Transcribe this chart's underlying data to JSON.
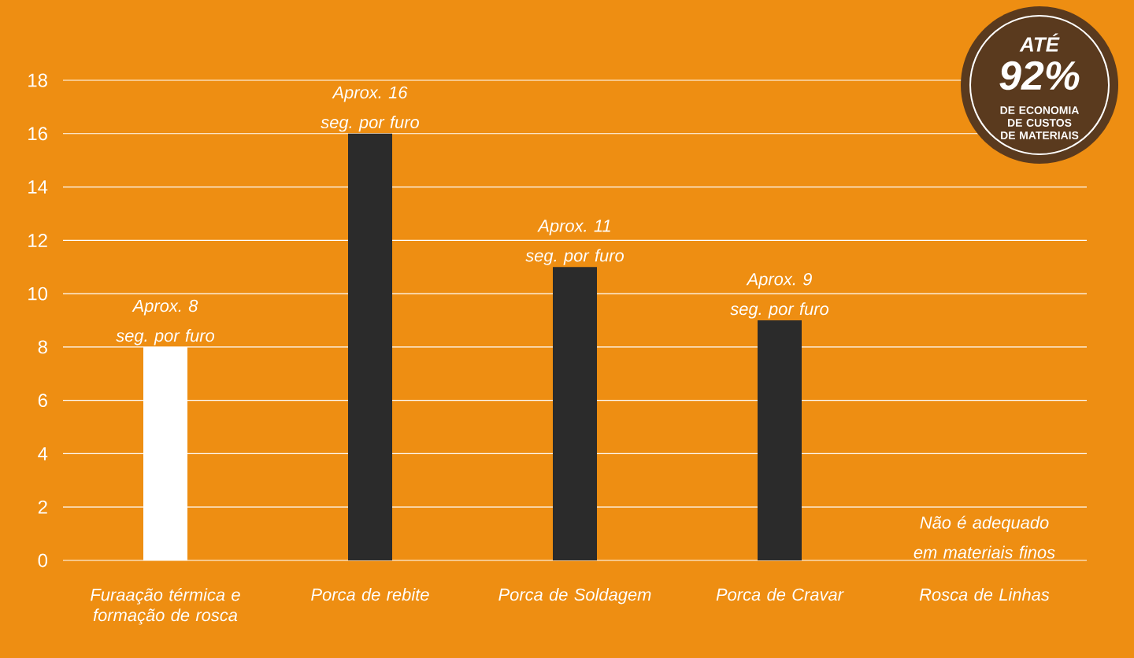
{
  "chart_data": {
    "type": "bar",
    "categories": [
      "Furaação térmica e formação de rosca",
      "Porca de rebite",
      "Porca de Soldagem",
      "Porca de Cravar",
      "Rosca de Linhas"
    ],
    "values": [
      8,
      16,
      11,
      9,
      null
    ],
    "colors": [
      "#ffffff",
      "#2b2b2b",
      "#2b2b2b",
      "#2b2b2b",
      "#2b2b2b"
    ],
    "value_labels": [
      "Aprox. 8 seg. por furo",
      "Aprox. 16 seg. por furo",
      "Aprox. 11 seg. por furo",
      "Aprox. 9 seg. por furo",
      "Não é adequado em materiais finos"
    ],
    "ylim": [
      0,
      18
    ],
    "yticks": [
      0,
      2,
      4,
      6,
      8,
      10,
      12,
      14,
      16,
      18
    ],
    "grid": "y",
    "annotations": [
      "ATÉ",
      "92%",
      "DE ECONOMIA DE CUSTOS DE MATERIAIS"
    ]
  }
}
